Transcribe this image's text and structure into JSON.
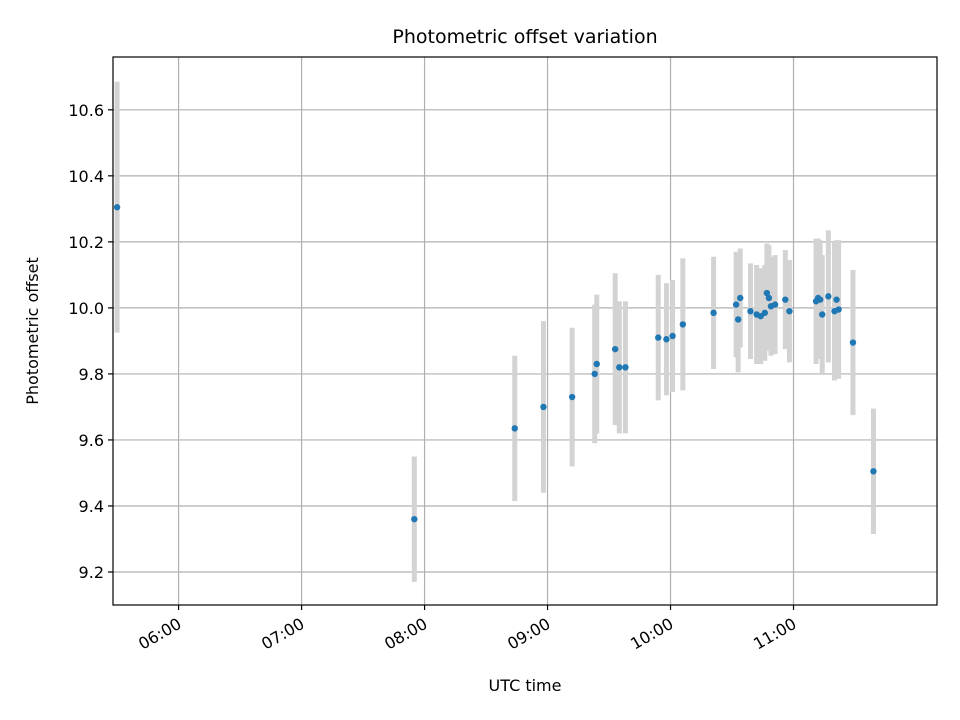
{
  "chart_data": {
    "type": "scatter",
    "title": "Photometric offset variation",
    "xlabel": "UTC time",
    "ylabel": "Photometric offset",
    "x_unit": "UTC time (HH:MM)",
    "xlim": [
      "05:28",
      "12:10"
    ],
    "ylim": [
      9.1,
      10.76
    ],
    "x_ticks": [
      "06:00",
      "07:00",
      "08:00",
      "09:00",
      "10:00",
      "11:00"
    ],
    "y_ticks": [
      "9.2",
      "9.4",
      "9.6",
      "9.8",
      "10.0",
      "10.2",
      "10.4",
      "10.6"
    ],
    "grid": true,
    "colors": {
      "points": "#1f77b4",
      "errorbars": "#d3d3d3",
      "grid": "#b0b0b0"
    },
    "series": [
      {
        "points": [
          {
            "x": "05:30",
            "y": 10.305,
            "err": 0.38
          },
          {
            "x": "07:55",
            "y": 9.36,
            "err": 0.19
          },
          {
            "x": "08:44",
            "y": 9.635,
            "err": 0.22
          },
          {
            "x": "08:58",
            "y": 9.7,
            "err": 0.26
          },
          {
            "x": "09:12",
            "y": 9.73,
            "err": 0.21
          },
          {
            "x": "09:23",
            "y": 9.8,
            "err": 0.21
          },
          {
            "x": "09:24",
            "y": 9.83,
            "err": 0.21
          },
          {
            "x": "09:33",
            "y": 9.875,
            "err": 0.23
          },
          {
            "x": "09:35",
            "y": 9.82,
            "err": 0.2
          },
          {
            "x": "09:38",
            "y": 9.82,
            "err": 0.2
          },
          {
            "x": "09:54",
            "y": 9.91,
            "err": 0.19
          },
          {
            "x": "09:58",
            "y": 9.905,
            "err": 0.17
          },
          {
            "x": "10:01",
            "y": 9.915,
            "err": 0.17
          },
          {
            "x": "10:06",
            "y": 9.95,
            "err": 0.2
          },
          {
            "x": "10:21",
            "y": 9.985,
            "err": 0.17
          },
          {
            "x": "10:32",
            "y": 10.01,
            "err": 0.16
          },
          {
            "x": "10:33",
            "y": 9.965,
            "err": 0.16
          },
          {
            "x": "10:34",
            "y": 10.03,
            "err": 0.15
          },
          {
            "x": "10:39",
            "y": 9.99,
            "err": 0.145
          },
          {
            "x": "10:42",
            "y": 9.98,
            "err": 0.15
          },
          {
            "x": "10:44",
            "y": 9.975,
            "err": 0.145
          },
          {
            "x": "10:46",
            "y": 9.985,
            "err": 0.145
          },
          {
            "x": "10:47",
            "y": 10.045,
            "err": 0.15
          },
          {
            "x": "10:48",
            "y": 10.03,
            "err": 0.16
          },
          {
            "x": "10:49",
            "y": 10.005,
            "err": 0.15
          },
          {
            "x": "10:51",
            "y": 10.01,
            "err": 0.15
          },
          {
            "x": "10:56",
            "y": 10.025,
            "err": 0.15
          },
          {
            "x": "10:58",
            "y": 9.99,
            "err": 0.155
          },
          {
            "x": "11:11",
            "y": 10.02,
            "err": 0.19
          },
          {
            "x": "11:12",
            "y": 10.03,
            "err": 0.18
          },
          {
            "x": "11:13",
            "y": 10.025,
            "err": 0.18
          },
          {
            "x": "11:14",
            "y": 9.98,
            "err": 0.18
          },
          {
            "x": "11:17",
            "y": 10.035,
            "err": 0.2
          },
          {
            "x": "11:20",
            "y": 9.99,
            "err": 0.21
          },
          {
            "x": "11:21",
            "y": 10.025,
            "err": 0.18
          },
          {
            "x": "11:22",
            "y": 9.995,
            "err": 0.21
          },
          {
            "x": "11:29",
            "y": 9.895,
            "err": 0.22
          },
          {
            "x": "11:39",
            "y": 9.505,
            "err": 0.19
          }
        ]
      }
    ]
  }
}
